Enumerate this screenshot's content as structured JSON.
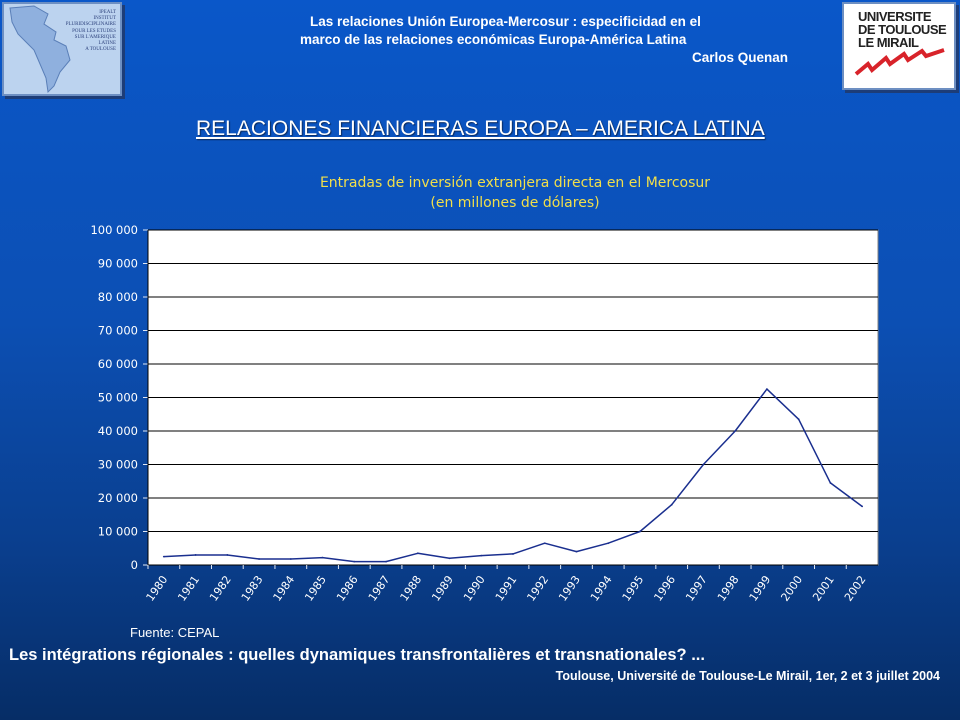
{
  "header": {
    "line1": "Las relaciones Unión Europea-Mercosur : especificidad en el",
    "line2": "marco de las relaciones económicas Europa-América Latina",
    "author": "Carlos Quenan"
  },
  "logo_left": {
    "lines": [
      "IPEALT",
      "INSTITUT",
      "PLURIDISCIPLINAIRE",
      "POUR LES ETUDES",
      "SUR L'AMERIQUE",
      "LATINE",
      "A TOULOUSE"
    ]
  },
  "logo_right": {
    "line1": "UNIVERSITE",
    "line2": "DE TOULOUSE",
    "line3": "LE MIRAIL"
  },
  "slide_title": "RELACIONES FINANCIERAS EUROPA – AMERICA LATINA",
  "colors": {
    "background": "#0c4fb3",
    "title_yellow": "#f2df4a",
    "line": "#1a2f8f",
    "logo_red": "#d8232a"
  },
  "chart_data": {
    "type": "line",
    "title_line1": "Entradas de inversión extranjera directa en el Mercosur",
    "title_line2": "(en millones de dólares)",
    "categories": [
      "1980",
      "1981",
      "1982",
      "1983",
      "1984",
      "1985",
      "1986",
      "1987",
      "1988",
      "1989",
      "1990",
      "1991",
      "1992",
      "1993",
      "1994",
      "1995",
      "1996",
      "1997",
      "1998",
      "1999",
      "2000",
      "2001",
      "2002"
    ],
    "series": [
      {
        "values": [
          2500,
          3000,
          3000,
          1800,
          1800,
          2200,
          1000,
          1000,
          3500,
          2000,
          2800,
          3300,
          6500,
          4000,
          6500,
          10000,
          18000,
          30000,
          40000,
          52500,
          43500,
          24500,
          17500
        ]
      }
    ],
    "ylim": [
      0,
      100000
    ],
    "yticks": [
      0,
      10000,
      20000,
      30000,
      40000,
      50000,
      60000,
      70000,
      80000,
      90000,
      100000
    ],
    "ytick_labels": [
      "0",
      "10 000",
      "20 000",
      "30 000",
      "40 000",
      "50 000",
      "60 000",
      "70 000",
      "80 000",
      "90 000",
      "100 000"
    ],
    "grid": true,
    "legend": "none"
  },
  "source": "Fuente: CEPAL",
  "tagline": "Les intégrations régionales : quelles dynamiques transfrontalières et transnationales? ...",
  "footer": "Toulouse, Université de Toulouse-Le Mirail, 1er, 2 et 3 juillet 2004"
}
